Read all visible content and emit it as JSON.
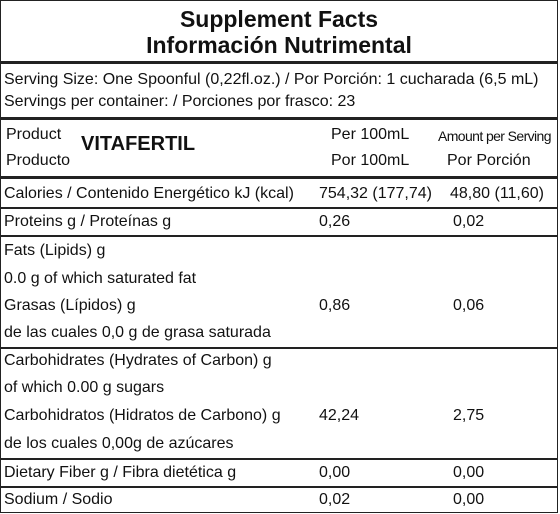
{
  "header": {
    "title_en": "Supplement Facts",
    "title_es": "Información Nutrimental"
  },
  "serving": {
    "size": "Serving Size: One Spoonful (0,22fl.oz.) / Por Porción: 1 cucharada (6,5 mL)",
    "per_container": "Servings per container: / Porciones por frasco: 23"
  },
  "columns": {
    "product_en": "Product",
    "product_es": "Producto",
    "product_name": "VITAFERTIL",
    "per100_en": "Per 100mL",
    "per100_es": "Por 100mL",
    "serving_en": "Amount per Serving",
    "serving_es": "Por Porción"
  },
  "rows": {
    "calories": {
      "label": "Calories / Contenido Energético  kJ (kcal)",
      "per100": "754,32 (177,74)",
      "serving": "48,80 (11,60)"
    },
    "proteins": {
      "label": "Proteins g / Proteínas g",
      "per100": "0,26",
      "serving": "0,02"
    },
    "fats": {
      "lines": [
        "Fats (Lipids) g",
        "0.0 g of which saturated fat",
        "Grasas (Lípidos) g",
        "de las cuales 0,0 g de grasa saturada"
      ],
      "per100": "0,86",
      "serving": "0,06"
    },
    "carbs": {
      "lines": [
        "Carbohidrates (Hydrates of Carbon) g",
        "of which 0.00 g sugars",
        "Carbohidratos (Hidratos de Carbono) g",
        "de los cuales 0,00g de azúcares"
      ],
      "per100": "42,24",
      "serving": "2,75"
    },
    "fiber": {
      "label": "Dietary Fiber g / Fibra dietética g",
      "per100": "0,00",
      "serving": "0,00"
    },
    "sodium": {
      "label": "Sodium / Sodio",
      "per100": "0,02",
      "serving": "0,00"
    }
  }
}
